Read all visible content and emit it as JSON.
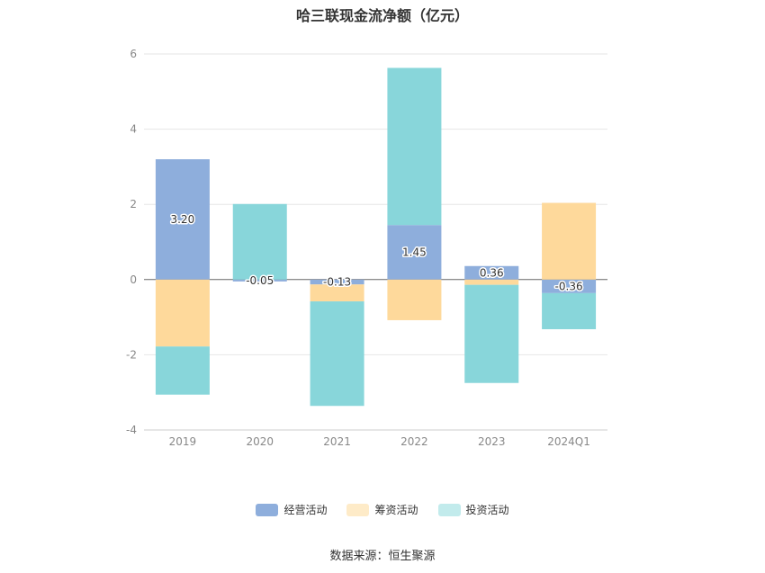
{
  "chart_data": {
    "type": "bar",
    "stacked": true,
    "title": "哈三联现金流净额（亿元）",
    "categories": [
      "2019",
      "2020",
      "2021",
      "2022",
      "2023",
      "2024Q1"
    ],
    "ylim": [
      -4,
      6
    ],
    "yticks": [
      6,
      4,
      2,
      0,
      -2,
      -4
    ],
    "grid": true,
    "legend_position": "bottom",
    "series": [
      {
        "name": "经营活动",
        "color": "#8eaedc",
        "values": [
          3.2,
          -0.05,
          -0.13,
          1.45,
          0.36,
          -0.36
        ]
      },
      {
        "name": "筹资活动",
        "color": "#fed99b",
        "values": [
          -1.78,
          0.0,
          -0.45,
          -1.08,
          -0.14,
          2.04
        ]
      },
      {
        "name": "投资活动",
        "color": "#88d6da",
        "values": [
          -1.28,
          2.01,
          -2.78,
          4.18,
          -2.61,
          -0.96
        ]
      }
    ],
    "data_labels": [
      "3.20",
      "-0.05",
      "-0.13",
      "1.45",
      "0.36",
      "-0.36"
    ],
    "legend_swatch_colors": [
      "#8eaedc",
      "#feebc8",
      "#c2ebec"
    ]
  },
  "source": "数据来源：恒生聚源"
}
